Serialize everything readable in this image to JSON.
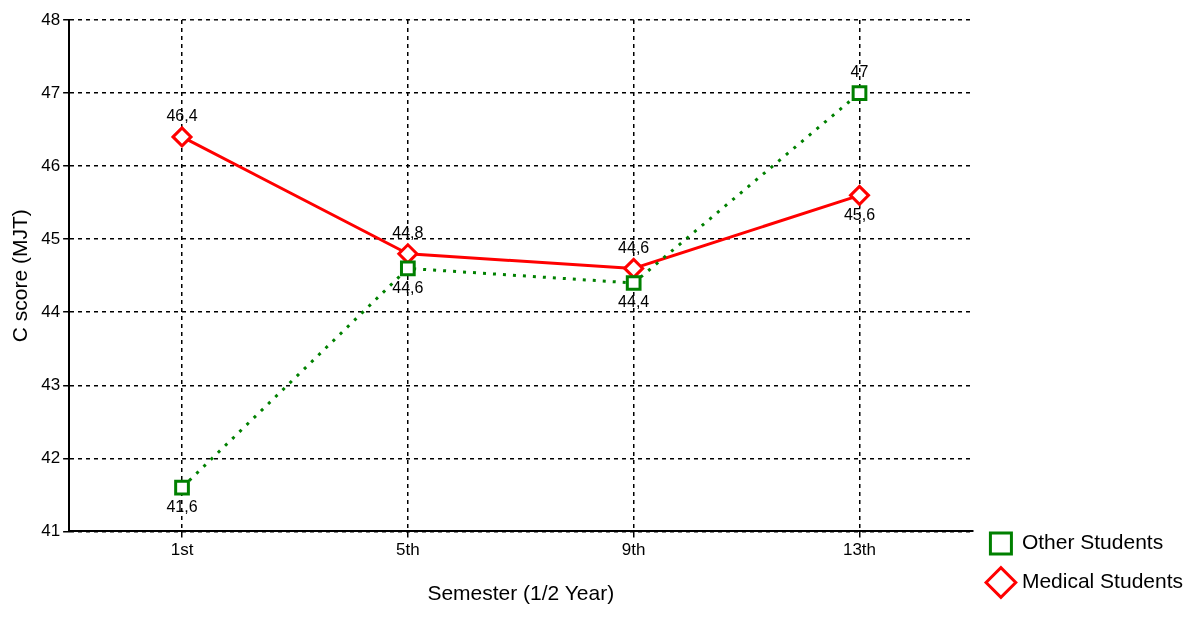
{
  "chart_data": {
    "type": "line",
    "xlabel": "Semester (1/2 Year)",
    "ylabel": "C score (MJT)",
    "categories": [
      "1st",
      "5th",
      "9th",
      "13th"
    ],
    "series": [
      {
        "name": "Other Students",
        "color": "#008000",
        "values": [
          41.6,
          44.6,
          44.4,
          47
        ],
        "value_labels": [
          "41,6",
          "44,6",
          "44,4",
          "47"
        ],
        "marker": "square",
        "line_style": "dotted"
      },
      {
        "name": "Medical Students",
        "color": "#ff0000",
        "values": [
          46.4,
          44.8,
          44.6,
          45.6
        ],
        "value_labels": [
          "46,4",
          "44,8",
          "44,6",
          "45,6"
        ],
        "marker": "diamond",
        "line_style": "solid"
      }
    ],
    "ylim": [
      41,
      48
    ],
    "yticks": [
      41,
      42,
      43,
      44,
      45,
      46,
      47,
      48
    ],
    "grid": true,
    "legend": "bottom right"
  }
}
